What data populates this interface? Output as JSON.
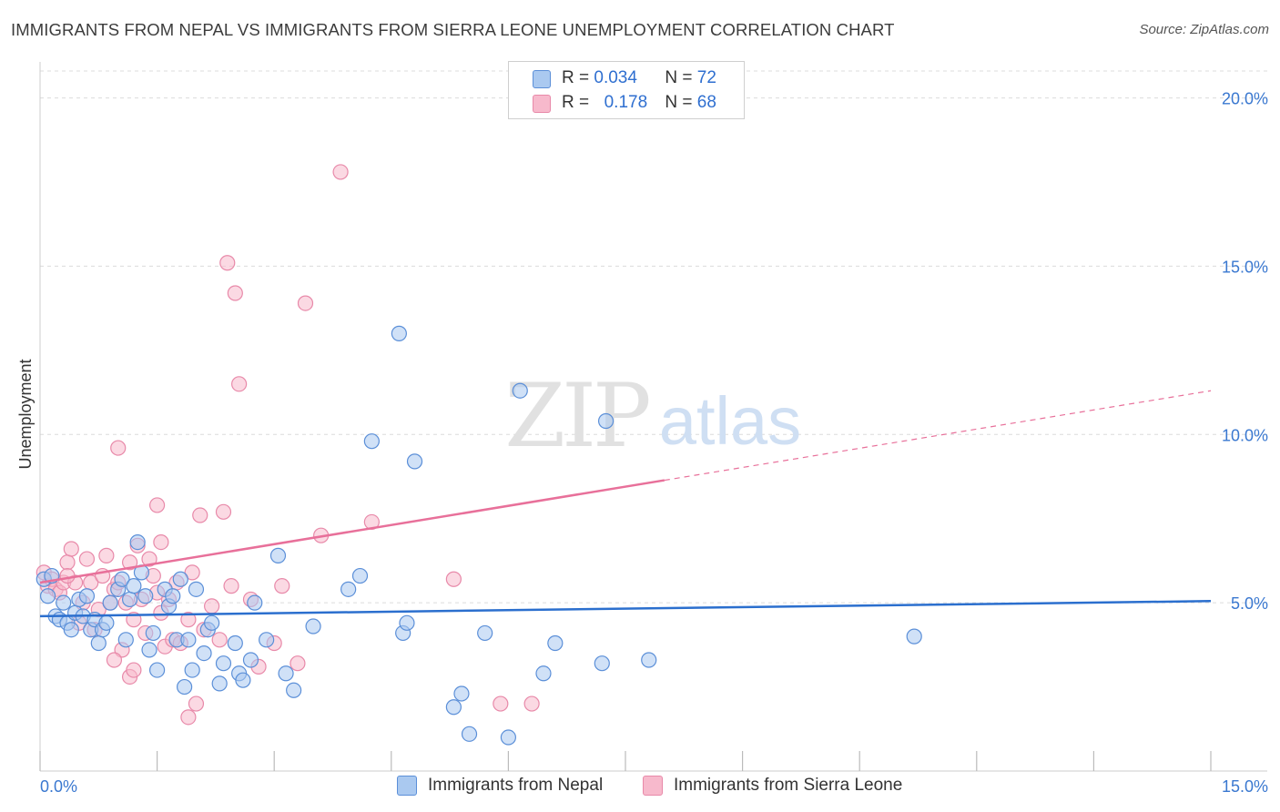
{
  "title": "IMMIGRANTS FROM NEPAL VS IMMIGRANTS FROM SIERRA LEONE UNEMPLOYMENT CORRELATION CHART",
  "source": "Source: ZipAtlas.com",
  "watermark": {
    "zip": "ZIP",
    "atlas": "atlas"
  },
  "legend": {
    "r_label": "R =",
    "n_label": "N =",
    "rows": [
      {
        "r": "0.034",
        "n": "72"
      },
      {
        "r": "0.178",
        "n": "68"
      }
    ]
  },
  "colors": {
    "blue_fill": "#aac9f0",
    "blue_stroke": "#5b8fd8",
    "blue_line": "#2b6fce",
    "pink_fill": "#f7b9cc",
    "pink_stroke": "#e889a9",
    "pink_line": "#e8709a",
    "axis_text": "#3a78d0",
    "grid": "#dcdcdc"
  },
  "chart_data": {
    "type": "scatter",
    "title": "IMMIGRANTS FROM NEPAL VS IMMIGRANTS FROM SIERRA LEONE UNEMPLOYMENT CORRELATION CHART",
    "xlabel": "",
    "ylabel": "Unemployment",
    "xlim": [
      0,
      15
    ],
    "ylim": [
      0,
      20.8
    ],
    "x_ticks": [
      0,
      1.5,
      3,
      4.5,
      6,
      7.5,
      9,
      10.5,
      12,
      13.5,
      15
    ],
    "x_tick_labels": [
      {
        "value": 0,
        "label": "0.0%"
      },
      {
        "value": 15,
        "label": "15.0%"
      }
    ],
    "y_ticks": [
      {
        "value": 5,
        "label": "5.0%"
      },
      {
        "value": 10,
        "label": "10.0%"
      },
      {
        "value": 15,
        "label": "15.0%"
      },
      {
        "value": 20,
        "label": "20.0%"
      }
    ],
    "grid": true,
    "legend_position": "top-center",
    "series": [
      {
        "name": "Immigrants from Nepal",
        "color": "#5b8fd8",
        "r": 0.034,
        "n": 72,
        "trend": {
          "x0": 0,
          "y0": 4.6,
          "x1": 15,
          "y1": 5.05,
          "dashed_from": null
        },
        "points": [
          [
            0.05,
            5.7
          ],
          [
            0.1,
            5.2
          ],
          [
            0.15,
            5.8
          ],
          [
            0.2,
            4.6
          ],
          [
            0.25,
            4.5
          ],
          [
            0.3,
            5.0
          ],
          [
            0.35,
            4.4
          ],
          [
            0.4,
            4.2
          ],
          [
            0.45,
            4.7
          ],
          [
            0.5,
            5.1
          ],
          [
            0.55,
            4.6
          ],
          [
            0.6,
            5.2
          ],
          [
            0.65,
            4.2
          ],
          [
            0.7,
            4.5
          ],
          [
            0.75,
            3.8
          ],
          [
            0.8,
            4.2
          ],
          [
            0.85,
            4.4
          ],
          [
            0.9,
            5.0
          ],
          [
            1.0,
            5.4
          ],
          [
            1.05,
            5.7
          ],
          [
            1.1,
            3.9
          ],
          [
            1.15,
            5.1
          ],
          [
            1.2,
            5.5
          ],
          [
            1.25,
            6.8
          ],
          [
            1.3,
            5.9
          ],
          [
            1.35,
            5.2
          ],
          [
            1.4,
            3.6
          ],
          [
            1.45,
            4.1
          ],
          [
            1.5,
            3.0
          ],
          [
            1.6,
            5.4
          ],
          [
            1.65,
            4.9
          ],
          [
            1.7,
            5.2
          ],
          [
            1.75,
            3.9
          ],
          [
            1.8,
            5.7
          ],
          [
            1.85,
            2.5
          ],
          [
            1.9,
            3.9
          ],
          [
            1.95,
            3.0
          ],
          [
            2.0,
            5.4
          ],
          [
            2.1,
            3.5
          ],
          [
            2.15,
            4.2
          ],
          [
            2.2,
            4.4
          ],
          [
            2.3,
            2.6
          ],
          [
            2.35,
            3.2
          ],
          [
            2.5,
            3.8
          ],
          [
            2.55,
            2.9
          ],
          [
            2.6,
            2.7
          ],
          [
            2.7,
            3.3
          ],
          [
            2.75,
            5.0
          ],
          [
            2.9,
            3.9
          ],
          [
            3.05,
            6.4
          ],
          [
            3.15,
            2.9
          ],
          [
            3.25,
            2.4
          ],
          [
            3.5,
            4.3
          ],
          [
            3.95,
            5.4
          ],
          [
            4.1,
            5.8
          ],
          [
            4.25,
            9.8
          ],
          [
            4.6,
            13.0
          ],
          [
            4.65,
            4.1
          ],
          [
            4.7,
            4.4
          ],
          [
            4.8,
            9.2
          ],
          [
            5.3,
            1.9
          ],
          [
            5.4,
            2.3
          ],
          [
            5.5,
            1.1
          ],
          [
            5.7,
            4.1
          ],
          [
            6.0,
            1.0
          ],
          [
            6.15,
            11.3
          ],
          [
            6.45,
            2.9
          ],
          [
            6.6,
            3.8
          ],
          [
            7.2,
            3.2
          ],
          [
            7.25,
            10.4
          ],
          [
            7.8,
            3.3
          ],
          [
            11.2,
            4.0
          ]
        ]
      },
      {
        "name": "Immigrants from Sierra Leone",
        "color": "#e889a9",
        "r": 0.178,
        "n": 68,
        "trend": {
          "x0": 0,
          "y0": 5.6,
          "x1": 15,
          "y1": 11.3,
          "dashed_from": 8.0
        },
        "points": [
          [
            0.05,
            5.9
          ],
          [
            0.1,
            5.5
          ],
          [
            0.15,
            5.7
          ],
          [
            0.2,
            5.4
          ],
          [
            0.25,
            5.3
          ],
          [
            0.3,
            5.6
          ],
          [
            0.35,
            6.2
          ],
          [
            0.4,
            6.6
          ],
          [
            0.45,
            5.6
          ],
          [
            0.5,
            4.4
          ],
          [
            0.55,
            5.0
          ],
          [
            0.6,
            6.3
          ],
          [
            0.65,
            5.6
          ],
          [
            0.7,
            4.2
          ],
          [
            0.75,
            4.8
          ],
          [
            0.8,
            5.8
          ],
          [
            0.85,
            6.4
          ],
          [
            0.9,
            5.0
          ],
          [
            0.95,
            5.4
          ],
          [
            1.0,
            5.6
          ],
          [
            1.05,
            3.6
          ],
          [
            1.1,
            5.0
          ],
          [
            1.15,
            6.2
          ],
          [
            1.2,
            4.5
          ],
          [
            1.25,
            6.7
          ],
          [
            1.3,
            5.1
          ],
          [
            1.35,
            4.1
          ],
          [
            1.4,
            6.3
          ],
          [
            1.45,
            5.8
          ],
          [
            1.5,
            5.3
          ],
          [
            1.55,
            4.7
          ],
          [
            1.6,
            3.7
          ],
          [
            1.65,
            5.1
          ],
          [
            1.7,
            3.9
          ],
          [
            1.75,
            5.6
          ],
          [
            1.8,
            3.8
          ],
          [
            1.9,
            4.5
          ],
          [
            1.95,
            5.9
          ],
          [
            2.05,
            7.6
          ],
          [
            2.1,
            4.2
          ],
          [
            2.2,
            4.9
          ],
          [
            2.3,
            3.9
          ],
          [
            2.35,
            7.7
          ],
          [
            2.4,
            15.1
          ],
          [
            2.45,
            5.5
          ],
          [
            2.5,
            14.2
          ],
          [
            2.55,
            11.5
          ],
          [
            2.7,
            5.1
          ],
          [
            2.8,
            3.1
          ],
          [
            3.0,
            3.8
          ],
          [
            3.1,
            5.5
          ],
          [
            3.3,
            3.2
          ],
          [
            3.4,
            13.9
          ],
          [
            3.6,
            7.0
          ],
          [
            3.85,
            17.8
          ],
          [
            4.25,
            7.4
          ],
          [
            1.0,
            9.6
          ],
          [
            1.5,
            7.9
          ],
          [
            1.55,
            6.8
          ],
          [
            0.95,
            3.3
          ],
          [
            1.15,
            2.8
          ],
          [
            1.9,
            1.6
          ],
          [
            2.0,
            2.0
          ],
          [
            5.3,
            5.7
          ],
          [
            5.9,
            2.0
          ],
          [
            6.3,
            2.0
          ],
          [
            1.2,
            3.0
          ],
          [
            0.35,
            5.8
          ]
        ]
      }
    ]
  }
}
